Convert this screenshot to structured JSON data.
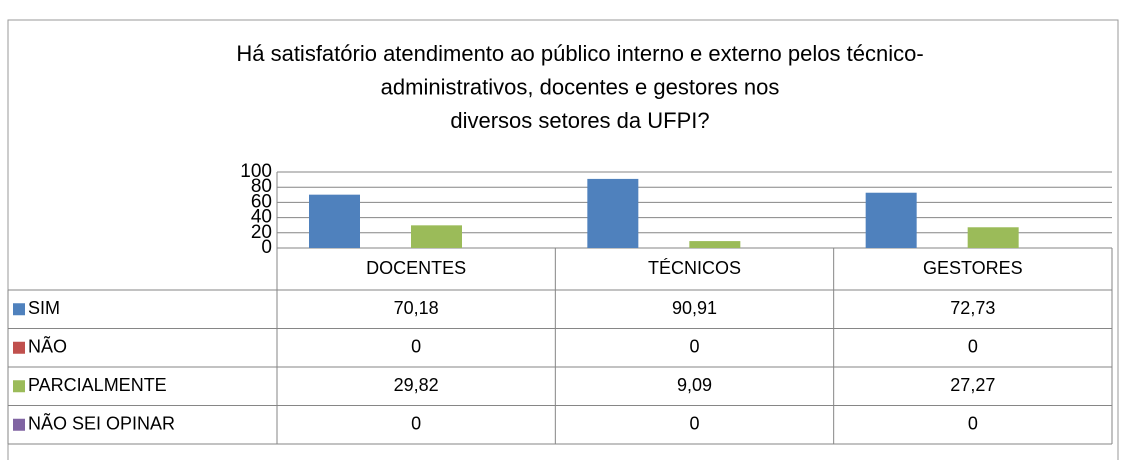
{
  "chart_data": {
    "type": "bar",
    "title": [
      "Há satisfatório atendimento ao público interno e externo pelos técnico-",
      "administrativos, docentes e gestores nos",
      "diversos setores da UFPI?"
    ],
    "categories": [
      "DOCENTES",
      "TÉCNICOS",
      "GESTORES"
    ],
    "series": [
      {
        "name": "SIM",
        "color": "#4f81bd",
        "values": [
          70.18,
          90.91,
          72.73
        ],
        "value_labels": [
          "70,18",
          "90,91",
          "72,73"
        ]
      },
      {
        "name": "NÃO",
        "color": "#c0504d",
        "values": [
          0,
          0,
          0
        ]
      },
      {
        "name": "PARCIALMENTE",
        "color": "#9bbb59",
        "values": [
          29.82,
          9.09,
          27.27
        ],
        "value_labels": [
          "29,82",
          "9,09",
          "27,27"
        ]
      },
      {
        "name": "NÃO SEI OPINAR",
        "color": "#8064a2",
        "values": [
          0,
          0,
          0
        ]
      }
    ],
    "ylim": [
      0,
      100
    ],
    "yticks": [
      0,
      20,
      40,
      60,
      80,
      100
    ],
    "grid": true,
    "data_table": true
  }
}
